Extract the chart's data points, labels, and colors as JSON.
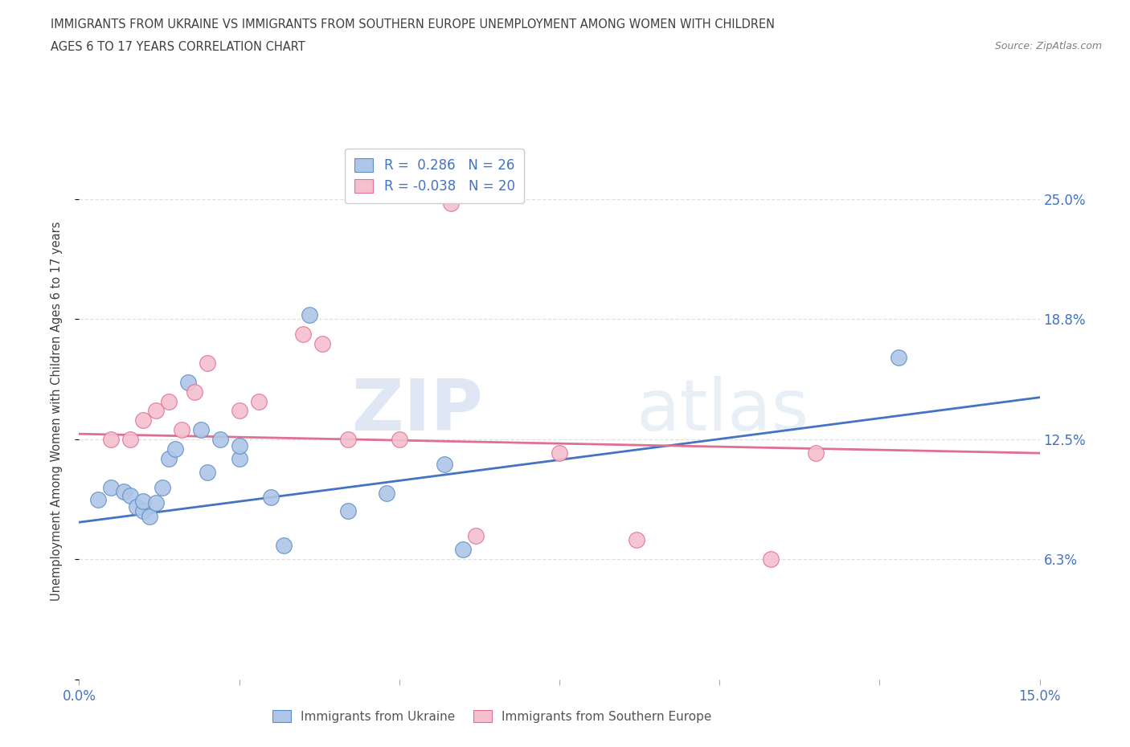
{
  "title_line1": "IMMIGRANTS FROM UKRAINE VS IMMIGRANTS FROM SOUTHERN EUROPE UNEMPLOYMENT AMONG WOMEN WITH CHILDREN",
  "title_line2": "AGES 6 TO 17 YEARS CORRELATION CHART",
  "source_text": "Source: ZipAtlas.com",
  "ylabel": "Unemployment Among Women with Children Ages 6 to 17 years",
  "xlim": [
    0.0,
    0.15
  ],
  "ylim": [
    0.0,
    0.28
  ],
  "ytick_positions": [
    0.0,
    0.063,
    0.125,
    0.188,
    0.25
  ],
  "ytick_labels": [
    "",
    "6.3%",
    "12.5%",
    "18.8%",
    "25.0%"
  ],
  "watermark_zip": "ZIP",
  "watermark_atlas": "atlas",
  "legend_r_ukraine": "R =  0.286",
  "legend_n_ukraine": "N = 26",
  "legend_r_southern": "R = -0.038",
  "legend_n_southern": "N = 20",
  "ukraine_color": "#aec6e8",
  "ukraine_edge_color": "#5b8ec4",
  "ukraine_line_color": "#4472c4",
  "southern_color": "#f5bfd0",
  "southern_edge_color": "#e07090",
  "southern_line_color": "#e07090",
  "ukraine_scatter": [
    [
      0.003,
      0.094
    ],
    [
      0.005,
      0.1
    ],
    [
      0.007,
      0.098
    ],
    [
      0.008,
      0.096
    ],
    [
      0.009,
      0.09
    ],
    [
      0.01,
      0.088
    ],
    [
      0.01,
      0.093
    ],
    [
      0.011,
      0.085
    ],
    [
      0.012,
      0.092
    ],
    [
      0.013,
      0.1
    ],
    [
      0.014,
      0.115
    ],
    [
      0.015,
      0.12
    ],
    [
      0.017,
      0.155
    ],
    [
      0.019,
      0.13
    ],
    [
      0.02,
      0.108
    ],
    [
      0.022,
      0.125
    ],
    [
      0.025,
      0.115
    ],
    [
      0.025,
      0.122
    ],
    [
      0.03,
      0.095
    ],
    [
      0.032,
      0.07
    ],
    [
      0.036,
      0.19
    ],
    [
      0.042,
      0.088
    ],
    [
      0.048,
      0.097
    ],
    [
      0.057,
      0.112
    ],
    [
      0.06,
      0.068
    ],
    [
      0.128,
      0.168
    ]
  ],
  "southern_scatter": [
    [
      0.005,
      0.125
    ],
    [
      0.008,
      0.125
    ],
    [
      0.01,
      0.135
    ],
    [
      0.012,
      0.14
    ],
    [
      0.014,
      0.145
    ],
    [
      0.016,
      0.13
    ],
    [
      0.018,
      0.15
    ],
    [
      0.02,
      0.165
    ],
    [
      0.025,
      0.14
    ],
    [
      0.028,
      0.145
    ],
    [
      0.035,
      0.18
    ],
    [
      0.038,
      0.175
    ],
    [
      0.042,
      0.125
    ],
    [
      0.05,
      0.125
    ],
    [
      0.058,
      0.248
    ],
    [
      0.062,
      0.075
    ],
    [
      0.075,
      0.118
    ],
    [
      0.087,
      0.073
    ],
    [
      0.108,
      0.063
    ],
    [
      0.115,
      0.118
    ]
  ],
  "ukraine_trendline_x": [
    0.0,
    0.15
  ],
  "ukraine_trendline_y": [
    0.082,
    0.147
  ],
  "southern_trendline_x": [
    0.0,
    0.15
  ],
  "southern_trendline_y": [
    0.128,
    0.118
  ],
  "background_color": "#ffffff",
  "grid_color": "#d8d8d8",
  "legend_text_color": "#4472c4",
  "axis_tick_color": "#4472c4",
  "title_color": "#404040",
  "source_color": "#808080",
  "ylabel_color": "#404040"
}
